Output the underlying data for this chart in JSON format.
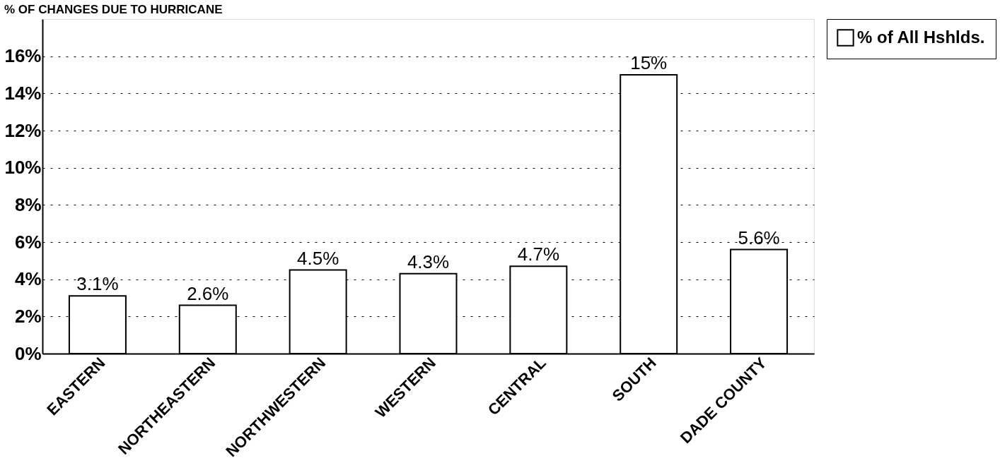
{
  "chart_data": {
    "type": "bar",
    "title": "% OF CHANGES DUE TO HURRICANE",
    "categories": [
      "EASTERN",
      "NORTHEASTERN",
      "NORTHWESTERN",
      "WESTERN",
      "CENTRAL",
      "SOUTH",
      "DADE COUNTY"
    ],
    "series": [
      {
        "name": "% of All Hshlds.",
        "color": "#ffffff",
        "values": [
          3.1,
          2.6,
          4.5,
          4.3,
          4.7,
          15,
          5.6
        ]
      }
    ],
    "value_labels": [
      "3.1%",
      "2.6%",
      "4.5%",
      "4.3%",
      "4.7%",
      "15%",
      "5.6%"
    ],
    "ylim": [
      0,
      18
    ],
    "yticks": [
      {
        "value": 0,
        "label": "0%"
      },
      {
        "value": 2,
        "label": "2%"
      },
      {
        "value": 4,
        "label": "4%"
      },
      {
        "value": 6,
        "label": "6%"
      },
      {
        "value": 8,
        "label": "8%"
      },
      {
        "value": 10,
        "label": "10%"
      },
      {
        "value": 12,
        "label": "12%"
      },
      {
        "value": 14,
        "label": "14%"
      },
      {
        "value": 16,
        "label": "16%"
      }
    ],
    "grid": "y",
    "legend": "right"
  }
}
